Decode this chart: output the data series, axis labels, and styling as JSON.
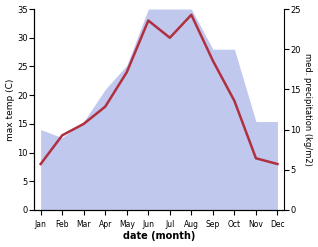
{
  "months": [
    "Jan",
    "Feb",
    "Mar",
    "Apr",
    "May",
    "Jun",
    "Jul",
    "Aug",
    "Sep",
    "Oct",
    "Nov",
    "Dec"
  ],
  "temperature": [
    8,
    13,
    15,
    18,
    24,
    33,
    30,
    34,
    26,
    19,
    9,
    8
  ],
  "precipitation": [
    10,
    9,
    11,
    15,
    18,
    25,
    25,
    25,
    20,
    20,
    11,
    11
  ],
  "temp_color": "#b03040",
  "precip_fill_color": "#c0c8ee",
  "title": "",
  "xlabel": "date (month)",
  "ylabel_left": "max temp (C)",
  "ylabel_right": "med. precipitation (kg/m2)",
  "ylim_left": [
    0,
    35
  ],
  "ylim_right": [
    0,
    25
  ],
  "yticks_left": [
    0,
    5,
    10,
    15,
    20,
    25,
    30,
    35
  ],
  "yticks_right": [
    0,
    5,
    10,
    15,
    20,
    25
  ],
  "bg_color": "#ffffff",
  "line_width": 1.8
}
